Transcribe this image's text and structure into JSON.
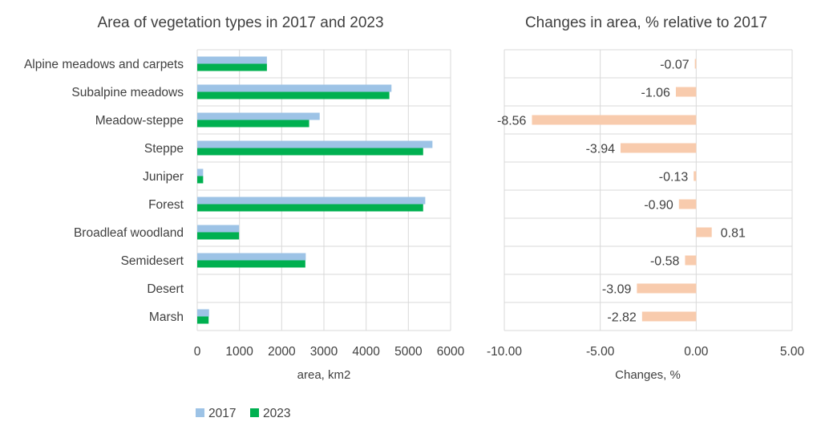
{
  "chart_data": [
    {
      "type": "bar",
      "orientation": "horizontal",
      "title": "Area of vegetation types in 2017 and 2023",
      "xlabel": "area, km2",
      "ylabel": "",
      "xlim": [
        0,
        6000
      ],
      "xticks": [
        "0",
        "1000",
        "2000",
        "3000",
        "4000",
        "5000",
        "6000"
      ],
      "grid": true,
      "legend_position": "bottom-left",
      "categories": [
        "Alpine meadows and carpets",
        "Subalpine meadows",
        "Meadow-steppe",
        "Steppe",
        "Juniper",
        "Forest",
        "Broadleaf woodland",
        "Semidesert",
        "Desert",
        "Marsh"
      ],
      "series": [
        {
          "name": "2017",
          "color": "#9DC3E6",
          "values": [
            1650,
            4600,
            2900,
            5570,
            140,
            5400,
            990,
            2570,
            0,
            280
          ]
        },
        {
          "name": "2023",
          "color": "#00B050",
          "values": [
            1650,
            4550,
            2650,
            5350,
            140,
            5350,
            990,
            2560,
            0,
            270
          ]
        }
      ]
    },
    {
      "type": "bar",
      "orientation": "horizontal",
      "title": "Changes in area, % relative to 2017",
      "xlabel": "Changes, %",
      "ylabel": "",
      "xlim": [
        -10,
        5
      ],
      "xticks": [
        "-10.00",
        "-5.00",
        "0.00",
        "5.00"
      ],
      "grid": true,
      "categories": [
        "Alpine meadows and carpets",
        "Subalpine meadows",
        "Meadow-steppe",
        "Steppe",
        "Juniper",
        "Forest",
        "Broadleaf woodland",
        "Semidesert",
        "Desert",
        "Marsh"
      ],
      "color": "#F8CBAD",
      "values": [
        -0.07,
        -1.06,
        -8.56,
        -3.94,
        -0.13,
        -0.9,
        0.81,
        -0.58,
        -3.09,
        -2.82
      ],
      "data_labels": [
        "-0.07",
        "-1.06",
        "-8.56",
        "-3.94",
        "-0.13",
        "-0.90",
        "0.81",
        "-0.58",
        "-3.09",
        "-2.82"
      ]
    }
  ]
}
